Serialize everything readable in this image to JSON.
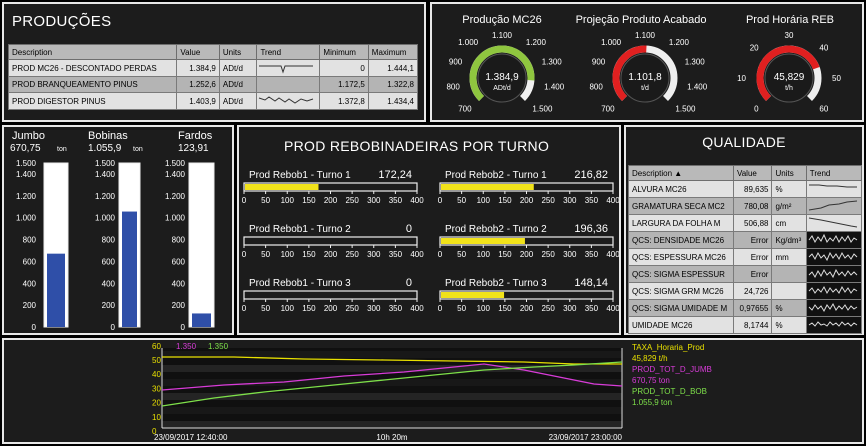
{
  "producoes": {
    "title": "PRODUÇÕES",
    "headers": [
      "Description",
      "Value",
      "Units",
      "Trend",
      "Minimum",
      "Maximum"
    ],
    "rows": [
      {
        "desc": "PROD MC26 - DESCONTADO PERDAS",
        "value": "1.384,9",
        "units": "ADt/d",
        "min": "0",
        "max": "1.444,1"
      },
      {
        "desc": "PROD BRANQUEAMENTO PINUS",
        "value": "1.252,6",
        "units": "ADt/d",
        "min": "1.172,5",
        "max": "1.322,8"
      },
      {
        "desc": "PROD DIGESTOR PINUS",
        "value": "1.403,9",
        "units": "ADt/d",
        "min": "1.372,8",
        "max": "1.434,4"
      }
    ]
  },
  "gauges": [
    {
      "title": "Produção MC26",
      "value": "1.384,9",
      "unit": "ADt/d",
      "fraction": 0.85,
      "color": "#8fc63f",
      "ticks": [
        "700",
        "800",
        "900",
        "1.000",
        "1.100",
        "1.200",
        "1.300",
        "1.400",
        "1.500"
      ]
    },
    {
      "title": "Projeção Produto Acabado",
      "value": "1.101,8",
      "unit": "t/d",
      "fraction": 0.51,
      "color": "#e02020",
      "ticks": [
        "700",
        "800",
        "900",
        "1.000",
        "1.100",
        "1.200",
        "1.300",
        "1.400",
        "1.500"
      ]
    },
    {
      "title": "Prod Horária REB",
      "value": "45,829",
      "unit": "t/h",
      "fraction": 0.76,
      "color": "#e02020",
      "ticks": [
        "0",
        "10",
        "20",
        "30",
        "40",
        "50",
        "60"
      ]
    }
  ],
  "estoque": {
    "columns": [
      {
        "name": "Jumbo",
        "value": "670,75",
        "unit": "ton",
        "level": 670.75
      },
      {
        "name": "Bobinas",
        "value": "1.055,9",
        "unit": "ton",
        "level": 1055.9
      },
      {
        "name": "Fardos",
        "value": "123,91",
        "unit": "",
        "level": 123.91
      }
    ],
    "scale_max": 1500,
    "ticks": [
      "1.500",
      "1.400",
      "1.200",
      "1.000",
      "800",
      "600",
      "400",
      "200",
      "0"
    ]
  },
  "rebobinadeiras": {
    "title": "PROD REBOBINADEIRAS POR TURNO",
    "scale_max": 400,
    "ticks": [
      "0",
      "50",
      "100",
      "150",
      "200",
      "250",
      "300",
      "350",
      "400"
    ],
    "bars": [
      {
        "label": "Prod Rebob1 - Turno 1",
        "value": "172,24",
        "level": 172.24
      },
      {
        "label": "Prod Rebob2 - Turno 1",
        "value": "216,82",
        "level": 216.82
      },
      {
        "label": "Prod Rebob1 - Turno 2",
        "value": "0",
        "level": 0
      },
      {
        "label": "Prod Rebob2 - Turno 2",
        "value": "196,36",
        "level": 196.36
      },
      {
        "label": "Prod Rebob1 - Turno 3",
        "value": "0",
        "level": 0
      },
      {
        "label": "Prod Rebob2 - Turno 3",
        "value": "148,14",
        "level": 148.14
      }
    ]
  },
  "qualidade": {
    "title": "QUALIDADE",
    "headers": [
      "Description ▲",
      "Value",
      "Units",
      "Trend"
    ],
    "rows": [
      {
        "desc": "ALVURA MC26",
        "value": "89,635",
        "units": "%"
      },
      {
        "desc": "GRAMATURA SECA MC2",
        "value": "780,08",
        "units": "g/m²"
      },
      {
        "desc": "LARGURA DA FOLHA M",
        "value": "506,88",
        "units": "cm"
      },
      {
        "desc": "QCS: DENSIDADE MC26",
        "value": "Error",
        "units": "Kg/dm³"
      },
      {
        "desc": "QCS: ESPESSURA MC26",
        "value": "Error",
        "units": "mm"
      },
      {
        "desc": "QCS: SIGMA ESPESSUR",
        "value": "Error",
        "units": ""
      },
      {
        "desc": "QCS: SIGMA GRM MC26",
        "value": "24,726",
        "units": ""
      },
      {
        "desc": "QCS: SIGMA UMIDADE M",
        "value": "0,97655",
        "units": "%"
      },
      {
        "desc": "UMIDADE MC26",
        "value": "8,1744",
        "units": "%"
      }
    ]
  },
  "trend": {
    "axis_tops": [
      "60",
      "1.350",
      "1.350"
    ],
    "axis_colors": [
      "#e8e000",
      "#d83cd8",
      "#7ee04a"
    ],
    "y_ticks": [
      "50",
      "40",
      "30",
      "20",
      "10",
      "0"
    ],
    "x_start": "23/09/2017 12:40:00",
    "x_mid": "10h 20m",
    "x_end": "23/09/2017 23:00:00",
    "legend": [
      {
        "name": "TAXA_Horaria_Prod",
        "value": "45,829 t/h",
        "color": "#e8e000"
      },
      {
        "name": "PROD_TOT_D_JUMB",
        "value": "670,75 ton",
        "color": "#d83cd8"
      },
      {
        "name": "PROD_TOT_D_BOB",
        "value": "1.055,9 ton",
        "color": "#7ee04a"
      }
    ]
  }
}
